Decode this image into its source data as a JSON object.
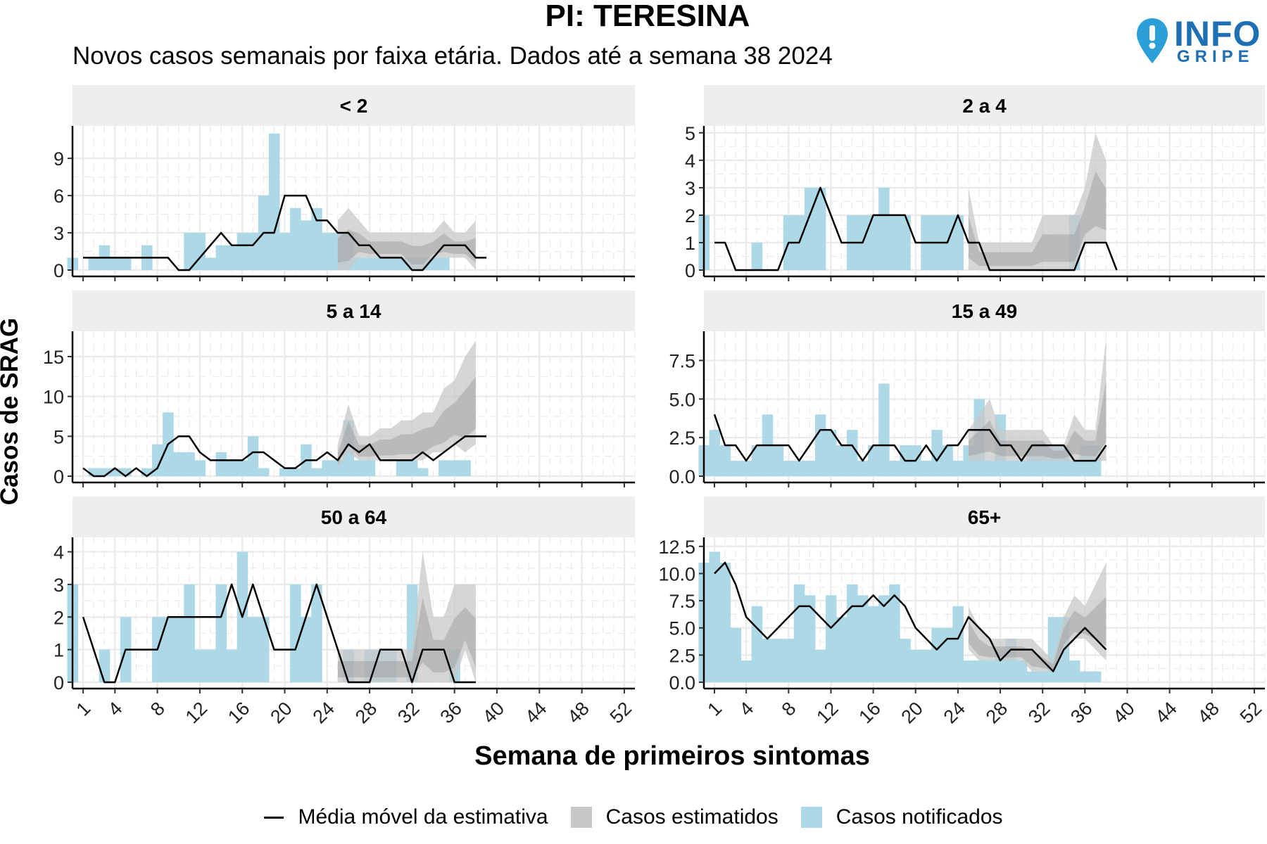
{
  "title": "PI: TERESINA",
  "subtitle": "Novos casos semanais por faixa etária. Dados até a semana 38 2024",
  "logo": {
    "word1": "INFO",
    "word2": "GRIPE"
  },
  "colors": {
    "notified": "#add8e6",
    "estimated": "#c8c8c8",
    "estimated_dark": "#9a9a9a",
    "line": "#000000",
    "strip": "#eeeeee",
    "grid": "#ebebeb"
  },
  "legend": {
    "line_label": "Média móvel da estimativa",
    "estimated_label": "Casos estimatidos",
    "notified_label": "Casos notificados"
  },
  "chart_data": {
    "type": "bar",
    "xlabel": "Semana de primeiros sintomas",
    "ylabel": "Casos de SRAG",
    "x_ticks": [
      1,
      4,
      8,
      12,
      16,
      20,
      24,
      28,
      32,
      36,
      40,
      44,
      48,
      52
    ],
    "xlim": [
      0,
      53
    ],
    "panels": [
      {
        "name": "< 2",
        "yticks": [
          0,
          3,
          6,
          9
        ],
        "ytick_labels": [
          "0",
          "3",
          "6",
          "9"
        ],
        "ylim": [
          0,
          11.5
        ],
        "notified": [
          1,
          0,
          1,
          2,
          1,
          1,
          0,
          2,
          0,
          0,
          0,
          3,
          3,
          1,
          2,
          2,
          3,
          3,
          6,
          11,
          3,
          5,
          4,
          5,
          3,
          3,
          3,
          1,
          1,
          1,
          1,
          1,
          1,
          1,
          1,
          1,
          0,
          0
        ],
        "moving_avg": [
          1,
          1,
          1,
          1,
          1,
          1,
          1,
          1,
          1,
          0,
          0,
          1,
          2,
          3,
          2,
          2,
          2,
          3,
          3,
          6,
          6,
          6,
          4,
          4,
          3,
          3,
          2,
          2,
          1,
          1,
          1,
          0,
          0,
          1,
          2,
          2,
          2,
          1,
          1
        ],
        "estimate_band": {
          "start_week": 25,
          "low": [
            0,
            0,
            1,
            1,
            1,
            1,
            1,
            0,
            0,
            1,
            1,
            1,
            1,
            0
          ],
          "high": [
            4,
            5,
            4,
            3,
            3,
            3,
            3,
            3,
            3,
            3,
            4,
            3,
            3,
            4
          ]
        }
      },
      {
        "name": "2 a 4",
        "yticks": [
          0,
          1,
          2,
          3,
          4,
          5
        ],
        "ytick_labels": [
          "0",
          "1",
          "2",
          "3",
          "4",
          "5"
        ],
        "ylim": [
          0,
          5.2
        ],
        "notified": [
          2,
          0,
          0,
          0,
          0,
          1,
          0,
          0,
          2,
          2,
          3,
          3,
          0,
          0,
          2,
          2,
          2,
          3,
          2,
          2,
          0,
          2,
          2,
          2,
          2,
          0,
          0,
          0,
          0,
          0,
          0,
          0,
          0,
          0,
          0,
          2,
          0,
          0
        ],
        "moving_avg": [
          1,
          1,
          0,
          0,
          0,
          0,
          0,
          1,
          1,
          2,
          3,
          2,
          1,
          1,
          1,
          2,
          2,
          2,
          2,
          1,
          1,
          1,
          1,
          2,
          1,
          1,
          0,
          0,
          0,
          0,
          0,
          0,
          0,
          0,
          0,
          1,
          1,
          1,
          0
        ],
        "estimate_band": {
          "start_week": 25,
          "low": [
            0,
            0,
            0,
            0,
            0,
            0,
            0,
            0,
            0,
            0,
            0,
            1,
            1,
            1
          ],
          "high": [
            3,
            1,
            1,
            1,
            1,
            1,
            1,
            2,
            2,
            2,
            2,
            3,
            5,
            4
          ]
        }
      },
      {
        "name": "5 a 14",
        "yticks": [
          0,
          5,
          10,
          15
        ],
        "ytick_labels": [
          "0",
          "5",
          "10",
          "15"
        ],
        "ylim": [
          0,
          18
        ],
        "notified": [
          0,
          0,
          1,
          1,
          1,
          1,
          0,
          1,
          4,
          8,
          3,
          3,
          2,
          0,
          3,
          2,
          2,
          5,
          1,
          0,
          1,
          1,
          4,
          1,
          2,
          2,
          7,
          2,
          2,
          0,
          0,
          2,
          2,
          1,
          0,
          2,
          2,
          2
        ],
        "moving_avg": [
          1,
          0,
          0,
          1,
          0,
          1,
          0,
          1,
          4,
          5,
          5,
          3,
          2,
          2,
          2,
          2,
          3,
          3,
          2,
          1,
          1,
          2,
          2,
          3,
          2,
          4,
          3,
          4,
          2,
          2,
          2,
          2,
          3,
          2,
          3,
          4,
          5,
          5,
          5
        ],
        "estimate_band": {
          "start_week": 25,
          "low": [
            1,
            3,
            2,
            2,
            2,
            2,
            2,
            2,
            2,
            3,
            3,
            4,
            3,
            4
          ],
          "high": [
            4,
            9,
            5,
            5,
            6,
            6,
            7,
            7,
            8,
            8,
            11,
            12,
            15,
            17
          ]
        }
      },
      {
        "name": "15 a 49",
        "yticks": [
          0,
          2.5,
          5,
          7.5
        ],
        "ytick_labels": [
          "0.0",
          "2.5",
          "5.0",
          "7.5"
        ],
        "ylim": [
          0,
          9.3
        ],
        "notified": [
          2,
          3,
          2,
          1,
          1,
          2,
          4,
          2,
          1,
          1,
          1,
          4,
          3,
          2,
          3,
          1,
          2,
          6,
          1,
          2,
          2,
          1,
          3,
          2,
          1,
          2,
          5,
          1,
          4,
          1,
          1,
          2,
          2,
          2,
          2,
          1,
          2,
          2
        ],
        "moving_avg": [
          4,
          2,
          2,
          1,
          2,
          2,
          2,
          2,
          1,
          2,
          3,
          3,
          2,
          2,
          1,
          2,
          2,
          2,
          1,
          1,
          2,
          1,
          2,
          2,
          3,
          3,
          3,
          2,
          2,
          1,
          2,
          2,
          2,
          2,
          1,
          1,
          1,
          2
        ],
        "estimate_band": {
          "start_week": 25,
          "low": [
            1,
            1,
            1,
            1,
            1,
            1,
            1,
            1,
            1,
            1,
            1,
            1,
            1,
            1
          ],
          "high": [
            3,
            4,
            5,
            3,
            3,
            3,
            3,
            3,
            2,
            2,
            4,
            3,
            3,
            9
          ]
        }
      },
      {
        "name": "50 a 64",
        "yticks": [
          0,
          1,
          2,
          3,
          4
        ],
        "ytick_labels": [
          "0",
          "1",
          "2",
          "3",
          "4"
        ],
        "ylim": [
          0,
          4.4
        ],
        "notified": [
          3,
          0,
          0,
          1,
          0,
          2,
          0,
          0,
          2,
          2,
          2,
          3,
          1,
          1,
          3,
          1,
          4,
          2,
          2,
          0,
          0,
          3,
          2,
          3,
          0,
          0,
          1,
          0,
          1,
          1,
          1,
          0,
          3,
          0,
          0,
          0,
          1,
          0
        ],
        "moving_avg": [
          2,
          1,
          0,
          0,
          1,
          1,
          1,
          1,
          2,
          2,
          2,
          2,
          2,
          2,
          3,
          2,
          3,
          2,
          1,
          1,
          1,
          2,
          3,
          2,
          1,
          0,
          0,
          0,
          1,
          1,
          1,
          0,
          1,
          1,
          1,
          0,
          0,
          0
        ],
        "estimate_band": {
          "start_week": 25,
          "low": [
            0,
            0,
            0,
            0,
            0,
            0,
            0,
            0,
            0,
            0,
            0,
            0,
            1,
            0
          ],
          "high": [
            1,
            1,
            1,
            1,
            1,
            1,
            1,
            1,
            4,
            2,
            2,
            3,
            3,
            3
          ]
        }
      },
      {
        "name": "65+",
        "yticks": [
          0,
          2.5,
          5,
          7.5,
          10,
          12.5
        ],
        "ytick_labels": [
          "0.0",
          "2.5",
          "5.0",
          "7.5",
          "10.0",
          "12.5"
        ],
        "ylim": [
          0,
          13.2
        ],
        "notified": [
          11,
          12,
          11,
          5,
          2,
          7,
          4,
          4,
          4,
          9,
          8,
          3,
          8,
          6,
          9,
          8,
          7,
          8,
          9,
          4,
          3,
          3,
          5,
          5,
          7,
          2,
          2,
          2,
          3,
          4,
          2,
          1,
          1,
          6,
          6,
          2,
          1,
          1
        ],
        "moving_avg": [
          10,
          11,
          9,
          6,
          5,
          4,
          5,
          6,
          7,
          7,
          6,
          5,
          6,
          7,
          7,
          8,
          7,
          8,
          7,
          5,
          4,
          3,
          4,
          4,
          6,
          5,
          4,
          2,
          3,
          3,
          3,
          2,
          1,
          3,
          4,
          5,
          4,
          3
        ],
        "estimate_band": {
          "start_week": 25,
          "low": [
            3,
            2,
            2,
            2,
            2,
            2,
            1,
            1,
            1,
            3,
            4,
            4,
            3,
            2
          ],
          "high": [
            7,
            5,
            4,
            4,
            4,
            4,
            4,
            3,
            2,
            6,
            8,
            7,
            9,
            11
          ]
        }
      }
    ]
  }
}
